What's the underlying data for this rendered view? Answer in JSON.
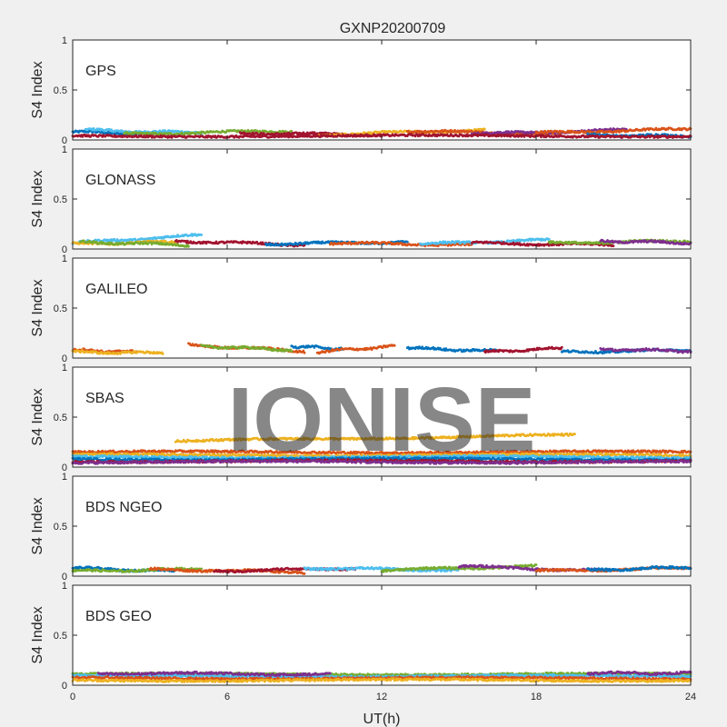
{
  "title": "GXNP20200709",
  "watermark": "IONISE",
  "chart_data": {
    "type": "scatter",
    "title": "GXNP20200709",
    "xlabel": "UT(h)",
    "ylabel": "S4 Index",
    "xlim": [
      0,
      24
    ],
    "ylim": [
      0,
      1
    ],
    "xticks": [
      0,
      6,
      12,
      18,
      24
    ],
    "yticks": [
      0,
      0.5,
      1
    ],
    "grid": false,
    "series_colors": [
      "#0072BD",
      "#D95319",
      "#EDB120",
      "#7E2F8E",
      "#77AC30",
      "#4DBEEE",
      "#A2142F"
    ],
    "panels": [
      {
        "name": "GPS",
        "tracks": [
          {
            "x0": 0.0,
            "x1": 3.6,
            "y0": 0.08,
            "y1": 0.06,
            "color": 0
          },
          {
            "x0": 0.5,
            "x1": 5.0,
            "y0": 0.1,
            "y1": 0.07,
            "color": 5
          },
          {
            "x0": 2.0,
            "x1": 8.5,
            "y0": 0.06,
            "y1": 0.09,
            "color": 4
          },
          {
            "x0": 6.5,
            "x1": 12.0,
            "y0": 0.07,
            "y1": 0.05,
            "color": 6
          },
          {
            "x0": 9.5,
            "x1": 16.0,
            "y0": 0.05,
            "y1": 0.1,
            "color": 2
          },
          {
            "x0": 13.0,
            "x1": 19.0,
            "y0": 0.09,
            "y1": 0.06,
            "color": 1
          },
          {
            "x0": 15.5,
            "x1": 21.5,
            "y0": 0.06,
            "y1": 0.1,
            "color": 3
          },
          {
            "x0": 18.0,
            "x1": 24.0,
            "y0": 0.07,
            "y1": 0.11,
            "color": 1
          },
          {
            "x0": 20.0,
            "x1": 24.0,
            "y0": 0.05,
            "y1": 0.04,
            "color": 0
          },
          {
            "x0": 0.0,
            "x1": 24.0,
            "y0": 0.04,
            "y1": 0.04,
            "color": 6
          }
        ]
      },
      {
        "name": "GLONASS",
        "tracks": [
          {
            "x0": 0.0,
            "x1": 5.0,
            "y0": 0.06,
            "y1": 0.14,
            "color": 5
          },
          {
            "x0": 0.0,
            "x1": 4.0,
            "y0": 0.05,
            "y1": 0.07,
            "color": 2
          },
          {
            "x0": 0.3,
            "x1": 4.5,
            "y0": 0.07,
            "y1": 0.04,
            "color": 4
          },
          {
            "x0": 4.0,
            "x1": 9.0,
            "y0": 0.08,
            "y1": 0.04,
            "color": 6
          },
          {
            "x0": 7.5,
            "x1": 13.0,
            "y0": 0.05,
            "y1": 0.07,
            "color": 0
          },
          {
            "x0": 10.0,
            "x1": 15.5,
            "y0": 0.06,
            "y1": 0.04,
            "color": 1
          },
          {
            "x0": 13.5,
            "x1": 18.5,
            "y0": 0.05,
            "y1": 0.09,
            "color": 5
          },
          {
            "x0": 15.5,
            "x1": 21.0,
            "y0": 0.06,
            "y1": 0.04,
            "color": 6
          },
          {
            "x0": 18.5,
            "x1": 24.0,
            "y0": 0.06,
            "y1": 0.08,
            "color": 4
          },
          {
            "x0": 20.5,
            "x1": 24.0,
            "y0": 0.08,
            "y1": 0.06,
            "color": 3
          }
        ]
      },
      {
        "name": "GALILEO",
        "tracks": [
          {
            "x0": 0.0,
            "x1": 2.5,
            "y0": 0.08,
            "y1": 0.06,
            "color": 1
          },
          {
            "x0": 0.0,
            "x1": 3.5,
            "y0": 0.06,
            "y1": 0.05,
            "color": 2
          },
          {
            "x0": 4.5,
            "x1": 9.0,
            "y0": 0.13,
            "y1": 0.07,
            "color": 1
          },
          {
            "x0": 5.0,
            "x1": 8.5,
            "y0": 0.12,
            "y1": 0.08,
            "color": 4
          },
          {
            "x0": 8.5,
            "x1": 10.5,
            "y0": 0.12,
            "y1": 0.09,
            "color": 0
          },
          {
            "x0": 9.5,
            "x1": 12.5,
            "y0": 0.06,
            "y1": 0.12,
            "color": 1
          },
          {
            "x0": 13.0,
            "x1": 16.5,
            "y0": 0.1,
            "y1": 0.07,
            "color": 0
          },
          {
            "x0": 16.0,
            "x1": 19.0,
            "y0": 0.06,
            "y1": 0.1,
            "color": 6
          },
          {
            "x0": 19.0,
            "x1": 24.0,
            "y0": 0.06,
            "y1": 0.08,
            "color": 0
          },
          {
            "x0": 20.5,
            "x1": 24.0,
            "y0": 0.09,
            "y1": 0.07,
            "color": 3
          }
        ]
      },
      {
        "name": "SBAS",
        "tracks": [
          {
            "x0": 0.0,
            "x1": 24.0,
            "y0": 0.15,
            "y1": 0.15,
            "color": 1
          },
          {
            "x0": 0.0,
            "x1": 24.0,
            "y0": 0.12,
            "y1": 0.12,
            "color": 2
          },
          {
            "x0": 0.0,
            "x1": 24.0,
            "y0": 0.1,
            "y1": 0.1,
            "color": 5
          },
          {
            "x0": 0.0,
            "x1": 24.0,
            "y0": 0.08,
            "y1": 0.08,
            "color": 0
          },
          {
            "x0": 0.0,
            "x1": 24.0,
            "y0": 0.06,
            "y1": 0.06,
            "color": 6
          },
          {
            "x0": 0.0,
            "x1": 24.0,
            "y0": 0.05,
            "y1": 0.05,
            "color": 3
          },
          {
            "x0": 4.0,
            "x1": 19.5,
            "y0": 0.26,
            "y1": 0.32,
            "color": 2
          }
        ]
      },
      {
        "name": "BDS NGEO",
        "tracks": [
          {
            "x0": 0.0,
            "x1": 4.0,
            "y0": 0.08,
            "y1": 0.05,
            "color": 0
          },
          {
            "x0": 0.0,
            "x1": 5.0,
            "y0": 0.05,
            "y1": 0.07,
            "color": 4
          },
          {
            "x0": 3.0,
            "x1": 9.0,
            "y0": 0.07,
            "y1": 0.04,
            "color": 1
          },
          {
            "x0": 5.5,
            "x1": 11.0,
            "y0": 0.05,
            "y1": 0.08,
            "color": 6
          },
          {
            "x0": 9.0,
            "x1": 15.0,
            "y0": 0.08,
            "y1": 0.06,
            "color": 5
          },
          {
            "x0": 12.0,
            "x1": 18.0,
            "y0": 0.06,
            "y1": 0.1,
            "color": 4
          },
          {
            "x0": 15.0,
            "x1": 21.0,
            "y0": 0.1,
            "y1": 0.05,
            "color": 3
          },
          {
            "x0": 18.0,
            "x1": 24.0,
            "y0": 0.05,
            "y1": 0.08,
            "color": 1
          },
          {
            "x0": 20.0,
            "x1": 24.0,
            "y0": 0.06,
            "y1": 0.09,
            "color": 0
          }
        ]
      },
      {
        "name": "BDS GEO",
        "tracks": [
          {
            "x0": 0.0,
            "x1": 24.0,
            "y0": 0.11,
            "y1": 0.11,
            "color": 4
          },
          {
            "x0": 0.0,
            "x1": 24.0,
            "y0": 0.09,
            "y1": 0.09,
            "color": 5
          },
          {
            "x0": 0.0,
            "x1": 24.0,
            "y0": 0.07,
            "y1": 0.07,
            "color": 1
          },
          {
            "x0": 0.0,
            "x1": 24.0,
            "y0": 0.05,
            "y1": 0.05,
            "color": 2
          },
          {
            "x0": 1.0,
            "x1": 10.0,
            "y0": 0.12,
            "y1": 0.11,
            "color": 3
          },
          {
            "x0": 20.0,
            "x1": 24.0,
            "y0": 0.12,
            "y1": 0.12,
            "color": 3
          }
        ]
      }
    ]
  }
}
